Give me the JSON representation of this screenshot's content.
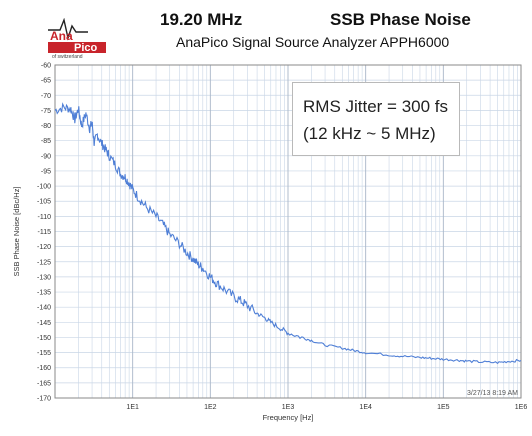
{
  "logo": {
    "text_top": "Ana",
    "text_right": "Pico",
    "tagline": "of switzerland"
  },
  "header": {
    "frequency": "19.20 MHz",
    "title": "SSB Phase Noise",
    "subtitle": "AnaPico Signal Source Analyzer APPH6000"
  },
  "annotation": {
    "line1": "RMS Jitter = 300 fs",
    "line2": "(12 kHz ~ 5 MHz)"
  },
  "timestamp": "3/27/13 8:19 AM",
  "colors": {
    "trace": "#4f7fd6",
    "grid": "#c9d6e6",
    "logo_red": "#c8242b"
  },
  "chart_data": {
    "type": "line",
    "ylabel": "SSB Phase Noise [dBc/Hz]",
    "xlabel": "Frequency [Hz]",
    "x_scale": "log",
    "xlim": [
      1,
      1000000
    ],
    "ylim": [
      -170,
      -60
    ],
    "x_ticks": [
      {
        "value": 10,
        "label": "1E1"
      },
      {
        "value": 100,
        "label": "1E2"
      },
      {
        "value": 1000,
        "label": "1E3"
      },
      {
        "value": 10000,
        "label": "1E4"
      },
      {
        "value": 100000,
        "label": "1E5"
      },
      {
        "value": 1000000,
        "label": "1E6"
      }
    ],
    "y_ticks": [
      -60,
      -65,
      -70,
      -75,
      -80,
      -85,
      -90,
      -95,
      -100,
      -105,
      -110,
      -115,
      -120,
      -125,
      -130,
      -135,
      -140,
      -145,
      -150,
      -155,
      -160,
      -165,
      -170
    ],
    "grid": true,
    "series": [
      {
        "x": [
          1,
          1.3,
          1.6,
          1.8,
          2,
          2.2,
          2.5,
          2.8,
          3,
          3.2,
          3.5,
          4,
          4.5,
          5,
          6,
          7,
          8,
          9,
          10,
          12,
          15,
          20,
          25,
          30,
          40,
          50,
          60,
          70,
          80,
          100,
          120,
          150,
          200,
          250,
          300,
          400,
          500,
          600,
          800,
          1000,
          1500,
          2000,
          3000,
          5000,
          7000,
          10000,
          20000,
          30000,
          50000,
          70000,
          100000,
          150000,
          200000,
          300000,
          500000,
          700000,
          1000000
        ],
        "y": [
          -75,
          -74,
          -74.5,
          -78,
          -74.5,
          -80,
          -76,
          -81,
          -79,
          -86,
          -83,
          -86,
          -88,
          -90,
          -93,
          -96,
          -97,
          -99,
          -101,
          -104,
          -107,
          -110,
          -113,
          -116,
          -119,
          -122,
          -124,
          -126,
          -127,
          -130,
          -132,
          -134,
          -136.5,
          -138,
          -139.5,
          -142,
          -143.5,
          -145,
          -147,
          -148.5,
          -150,
          -151,
          -152.5,
          -153.5,
          -154.3,
          -155,
          -155.8,
          -156.2,
          -156.6,
          -156.9,
          -157.2,
          -157.5,
          -157.8,
          -158.1,
          -158.3,
          -157.9,
          -157.6
        ]
      }
    ]
  }
}
